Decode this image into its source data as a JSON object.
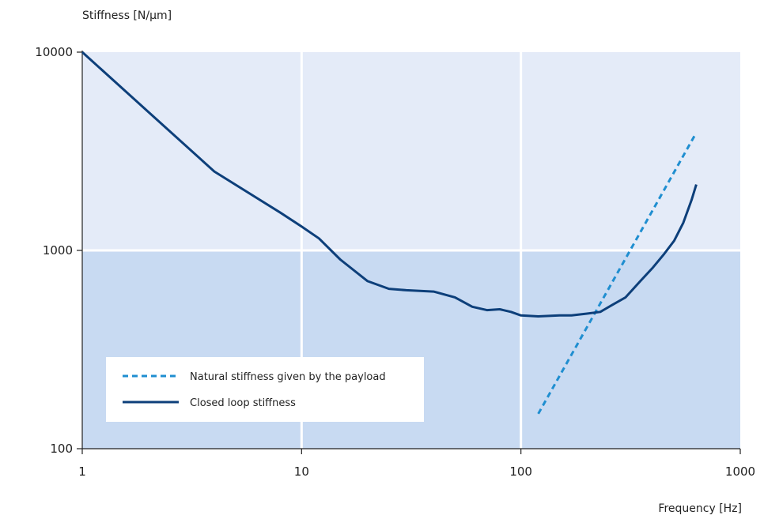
{
  "chart_data": {
    "type": "line",
    "title": "",
    "ylabel": "Stiffness [N/µm]",
    "xlabel": "Frequency [Hz]",
    "x_scale": "log",
    "y_scale": "log",
    "xlim": [
      1,
      1000
    ],
    "ylim": [
      100,
      10000
    ],
    "x_ticks": [
      "1",
      "10",
      "100",
      "1000"
    ],
    "y_ticks": [
      "10000",
      "1000",
      "100"
    ],
    "grid": true,
    "legend_position": "bottom-left",
    "colors": {
      "upper_band": "#e4ebf8",
      "lower_band": "#c8daf2",
      "grid": "#ffffff",
      "closed_loop": "#0d3f7a",
      "natural": "#1f8ed0"
    },
    "series": [
      {
        "name": "Natural stiffness given by the payload",
        "style": "dashed",
        "x": [
          120,
          620
        ],
        "y": [
          150,
          3800
        ]
      },
      {
        "name": "Closed loop stiffness",
        "style": "solid",
        "x": [
          1,
          2,
          4,
          8,
          10,
          12,
          15,
          20,
          25,
          30,
          40,
          50,
          60,
          70,
          80,
          90,
          100,
          120,
          150,
          170,
          200,
          230,
          260,
          300,
          350,
          400,
          450,
          500,
          550,
          600,
          630
        ],
        "y": [
          10000,
          5000,
          2500,
          1550,
          1320,
          1150,
          900,
          700,
          640,
          630,
          620,
          580,
          520,
          500,
          505,
          490,
          470,
          465,
          470,
          470,
          480,
          490,
          530,
          580,
          700,
          820,
          960,
          1120,
          1380,
          1800,
          2150
        ]
      }
    ]
  }
}
